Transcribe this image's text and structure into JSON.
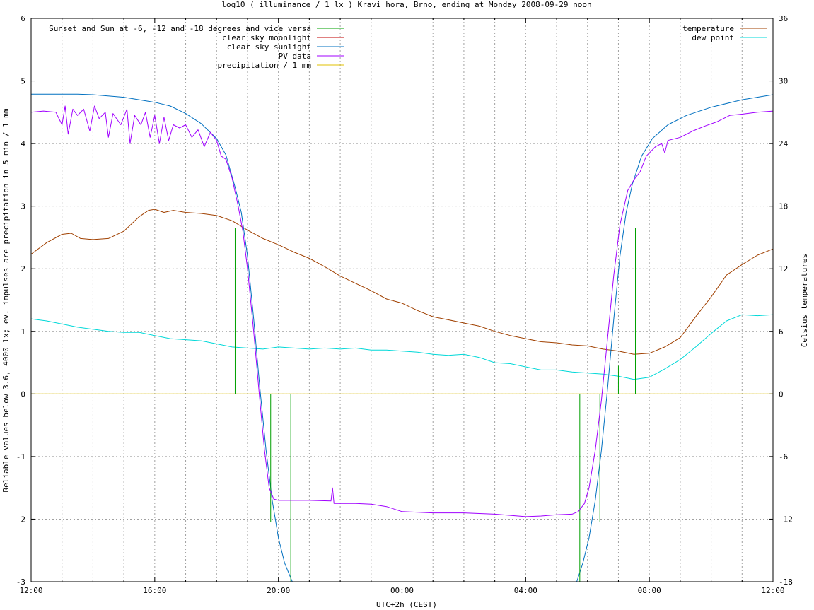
{
  "chart_data": {
    "type": "line",
    "title": "log10 ( illuminance / 1 lx ) Kravi hora, Brno, ending at Monday 2008-09-29 noon",
    "xlabel": "UTC+2h (CEST)",
    "ylabel": "Reliable values below 3.6, 4000 lx; ev. impulses are precipitation in 5 min / 1 mm",
    "y2label": "Celsius temperatures",
    "xlim": [
      0,
      24
    ],
    "ylim": [
      -3,
      6
    ],
    "y2lim": [
      -18,
      36
    ],
    "grid": true,
    "x_ticks": [
      {
        "v": 0,
        "label": "12:00"
      },
      {
        "v": 4,
        "label": "16:00"
      },
      {
        "v": 8,
        "label": "20:00"
      },
      {
        "v": 12,
        "label": "00:00"
      },
      {
        "v": 16,
        "label": "04:00"
      },
      {
        "v": 20,
        "label": "08:00"
      },
      {
        "v": 24,
        "label": "12:00"
      }
    ],
    "y_ticks": [
      {
        "v": -3,
        "label": "-3"
      },
      {
        "v": -2,
        "label": "-2"
      },
      {
        "v": -1,
        "label": "-1"
      },
      {
        "v": 0,
        "label": "0"
      },
      {
        "v": 1,
        "label": "1"
      },
      {
        "v": 2,
        "label": "2"
      },
      {
        "v": 3,
        "label": "3"
      },
      {
        "v": 4,
        "label": "4"
      },
      {
        "v": 5,
        "label": "5"
      },
      {
        "v": 6,
        "label": "6"
      }
    ],
    "y2_ticks": [
      {
        "v": -18,
        "label": "-18"
      },
      {
        "v": -12,
        "label": "-12"
      },
      {
        "v": -6,
        "label": "-6"
      },
      {
        "v": 0,
        "label": "0"
      },
      {
        "v": 6,
        "label": "6"
      },
      {
        "v": 12,
        "label": "12"
      },
      {
        "v": 18,
        "label": "18"
      },
      {
        "v": 24,
        "label": "24"
      },
      {
        "v": 30,
        "label": "30"
      },
      {
        "v": 36,
        "label": "36"
      }
    ],
    "series": [
      {
        "name": "Sunset and Sun at -6, -12 and -18 degrees and vice versa",
        "kind": "impulses",
        "color": "#00a000",
        "axis": "left",
        "points": [
          [
            6.6,
            2.65
          ],
          [
            7.15,
            0.45
          ],
          [
            7.75,
            -2.05
          ],
          [
            8.4,
            -3.0
          ],
          [
            17.75,
            -3.0
          ],
          [
            18.4,
            -2.05
          ],
          [
            19.0,
            0.45
          ],
          [
            19.55,
            2.65
          ]
        ]
      },
      {
        "name": "clear sky moonlight",
        "kind": "line",
        "color": "#c00000",
        "axis": "left",
        "points": []
      },
      {
        "name": "clear sky sunlight",
        "kind": "line",
        "color": "#0070c0",
        "axis": "left",
        "points": [
          [
            0,
            4.79
          ],
          [
            1.5,
            4.79
          ],
          [
            2,
            4.78
          ],
          [
            3,
            4.74
          ],
          [
            4,
            4.66
          ],
          [
            4.5,
            4.6
          ],
          [
            5,
            4.48
          ],
          [
            5.5,
            4.32
          ],
          [
            6,
            4.08
          ],
          [
            6.3,
            3.82
          ],
          [
            6.6,
            3.3
          ],
          [
            6.8,
            2.9
          ],
          [
            7.0,
            2.2
          ],
          [
            7.2,
            1.2
          ],
          [
            7.4,
            0.1
          ],
          [
            7.6,
            -0.9
          ],
          [
            7.8,
            -1.7
          ],
          [
            8.0,
            -2.3
          ],
          [
            8.2,
            -2.7
          ],
          [
            8.45,
            -3.0
          ],
          [
            17.65,
            -3.0
          ],
          [
            17.85,
            -2.7
          ],
          [
            18.05,
            -2.3
          ],
          [
            18.25,
            -1.7
          ],
          [
            18.45,
            -0.9
          ],
          [
            18.65,
            0.1
          ],
          [
            18.85,
            1.2
          ],
          [
            19.05,
            2.2
          ],
          [
            19.25,
            2.9
          ],
          [
            19.45,
            3.35
          ],
          [
            19.75,
            3.8
          ],
          [
            20.1,
            4.08
          ],
          [
            20.6,
            4.3
          ],
          [
            21.2,
            4.45
          ],
          [
            22,
            4.58
          ],
          [
            23,
            4.7
          ],
          [
            24,
            4.78
          ]
        ]
      },
      {
        "name": "PV data",
        "kind": "line",
        "color": "#a000ff",
        "axis": "left",
        "points": [
          [
            0,
            4.5
          ],
          [
            0.4,
            4.52
          ],
          [
            0.8,
            4.5
          ],
          [
            1.0,
            4.3
          ],
          [
            1.1,
            4.6
          ],
          [
            1.2,
            4.15
          ],
          [
            1.35,
            4.55
          ],
          [
            1.5,
            4.45
          ],
          [
            1.7,
            4.55
          ],
          [
            1.9,
            4.2
          ],
          [
            2.05,
            4.6
          ],
          [
            2.2,
            4.4
          ],
          [
            2.4,
            4.5
          ],
          [
            2.5,
            4.1
          ],
          [
            2.65,
            4.48
          ],
          [
            2.9,
            4.3
          ],
          [
            3.1,
            4.55
          ],
          [
            3.2,
            4.0
          ],
          [
            3.35,
            4.45
          ],
          [
            3.55,
            4.3
          ],
          [
            3.7,
            4.5
          ],
          [
            3.85,
            4.1
          ],
          [
            4.0,
            4.45
          ],
          [
            4.15,
            4.0
          ],
          [
            4.3,
            4.42
          ],
          [
            4.45,
            4.05
          ],
          [
            4.6,
            4.3
          ],
          [
            4.8,
            4.25
          ],
          [
            5.0,
            4.3
          ],
          [
            5.2,
            4.1
          ],
          [
            5.4,
            4.22
          ],
          [
            5.6,
            3.95
          ],
          [
            5.8,
            4.18
          ],
          [
            6.0,
            4.05
          ],
          [
            6.15,
            3.8
          ],
          [
            6.3,
            3.75
          ],
          [
            6.5,
            3.45
          ],
          [
            6.7,
            3.0
          ],
          [
            6.85,
            2.6
          ],
          [
            7.0,
            2.0
          ],
          [
            7.2,
            1.0
          ],
          [
            7.4,
            -0.1
          ],
          [
            7.55,
            -0.9
          ],
          [
            7.7,
            -1.5
          ],
          [
            7.85,
            -1.68
          ],
          [
            8.0,
            -1.7
          ],
          [
            9.0,
            -1.7
          ],
          [
            9.7,
            -1.71
          ],
          [
            9.75,
            -1.5
          ],
          [
            9.8,
            -1.75
          ],
          [
            10.5,
            -1.75
          ],
          [
            11.0,
            -1.76
          ],
          [
            11.5,
            -1.8
          ],
          [
            12.0,
            -1.88
          ],
          [
            13.0,
            -1.9
          ],
          [
            14.0,
            -1.9
          ],
          [
            15.0,
            -1.92
          ],
          [
            16.0,
            -1.96
          ],
          [
            16.5,
            -1.95
          ],
          [
            17.0,
            -1.93
          ],
          [
            17.5,
            -1.92
          ],
          [
            17.7,
            -1.88
          ],
          [
            17.9,
            -1.75
          ],
          [
            18.05,
            -1.5
          ],
          [
            18.25,
            -0.9
          ],
          [
            18.45,
            -0.1
          ],
          [
            18.65,
            0.9
          ],
          [
            18.85,
            1.9
          ],
          [
            19.05,
            2.7
          ],
          [
            19.3,
            3.25
          ],
          [
            19.5,
            3.42
          ],
          [
            19.7,
            3.55
          ],
          [
            19.9,
            3.8
          ],
          [
            20.2,
            3.95
          ],
          [
            20.4,
            4.0
          ],
          [
            20.5,
            3.85
          ],
          [
            20.6,
            4.05
          ],
          [
            21.0,
            4.1
          ],
          [
            21.4,
            4.2
          ],
          [
            21.8,
            4.28
          ],
          [
            22.2,
            4.35
          ],
          [
            22.6,
            4.45
          ],
          [
            23.0,
            4.47
          ],
          [
            23.5,
            4.5
          ],
          [
            24.0,
            4.52
          ]
        ]
      },
      {
        "name": "precipitation / 1 mm",
        "kind": "line",
        "color": "#e0c000",
        "axis": "left",
        "points": [
          [
            0,
            0
          ],
          [
            24,
            0
          ]
        ]
      },
      {
        "name": "temperature",
        "kind": "line",
        "color": "#a04000",
        "axis": "right",
        "points": [
          [
            0,
            13.4
          ],
          [
            0.5,
            14.5
          ],
          [
            1.0,
            15.3
          ],
          [
            1.3,
            15.4
          ],
          [
            1.6,
            14.9
          ],
          [
            2.0,
            14.8
          ],
          [
            2.5,
            14.9
          ],
          [
            3.0,
            15.6
          ],
          [
            3.5,
            17.0
          ],
          [
            3.8,
            17.6
          ],
          [
            4.0,
            17.7
          ],
          [
            4.3,
            17.4
          ],
          [
            4.6,
            17.6
          ],
          [
            5.0,
            17.4
          ],
          [
            5.5,
            17.3
          ],
          [
            6.0,
            17.1
          ],
          [
            6.5,
            16.6
          ],
          [
            7.0,
            15.7
          ],
          [
            7.5,
            14.9
          ],
          [
            8.0,
            14.3
          ],
          [
            8.5,
            13.6
          ],
          [
            9.0,
            13.0
          ],
          [
            9.5,
            12.2
          ],
          [
            10.0,
            11.3
          ],
          [
            10.5,
            10.6
          ],
          [
            11.0,
            9.9
          ],
          [
            11.5,
            9.1
          ],
          [
            12.0,
            8.7
          ],
          [
            12.5,
            8.0
          ],
          [
            13.0,
            7.4
          ],
          [
            13.5,
            7.1
          ],
          [
            14.0,
            6.8
          ],
          [
            14.5,
            6.5
          ],
          [
            15.0,
            6.0
          ],
          [
            15.5,
            5.6
          ],
          [
            16.0,
            5.3
          ],
          [
            16.5,
            5.0
          ],
          [
            17.0,
            4.9
          ],
          [
            17.5,
            4.7
          ],
          [
            18.0,
            4.6
          ],
          [
            18.5,
            4.3
          ],
          [
            19.0,
            4.1
          ],
          [
            19.5,
            3.8
          ],
          [
            20.0,
            3.9
          ],
          [
            20.5,
            4.5
          ],
          [
            21.0,
            5.4
          ],
          [
            21.5,
            7.4
          ],
          [
            22.0,
            9.3
          ],
          [
            22.5,
            11.4
          ],
          [
            23.0,
            12.4
          ],
          [
            23.5,
            13.3
          ],
          [
            24.0,
            13.9
          ]
        ]
      },
      {
        "name": "dew point",
        "kind": "line",
        "color": "#00d8d8",
        "axis": "right",
        "points": [
          [
            0,
            7.2
          ],
          [
            0.5,
            7.0
          ],
          [
            1.0,
            6.7
          ],
          [
            1.5,
            6.4
          ],
          [
            2.0,
            6.2
          ],
          [
            2.5,
            6.0
          ],
          [
            3.0,
            5.9
          ],
          [
            3.5,
            5.9
          ],
          [
            4.0,
            5.6
          ],
          [
            4.5,
            5.3
          ],
          [
            5.0,
            5.2
          ],
          [
            5.5,
            5.1
          ],
          [
            6.0,
            4.8
          ],
          [
            6.5,
            4.5
          ],
          [
            7.0,
            4.4
          ],
          [
            7.5,
            4.3
          ],
          [
            8.0,
            4.5
          ],
          [
            8.5,
            4.4
          ],
          [
            9.0,
            4.3
          ],
          [
            9.5,
            4.4
          ],
          [
            10.0,
            4.3
          ],
          [
            10.5,
            4.4
          ],
          [
            11.0,
            4.2
          ],
          [
            11.5,
            4.2
          ],
          [
            12.0,
            4.1
          ],
          [
            12.5,
            4.0
          ],
          [
            13.0,
            3.8
          ],
          [
            13.5,
            3.7
          ],
          [
            14.0,
            3.8
          ],
          [
            14.5,
            3.5
          ],
          [
            15.0,
            3.0
          ],
          [
            15.5,
            2.9
          ],
          [
            16.0,
            2.6
          ],
          [
            16.5,
            2.3
          ],
          [
            17.0,
            2.3
          ],
          [
            17.5,
            2.1
          ],
          [
            18.0,
            2.0
          ],
          [
            18.5,
            1.9
          ],
          [
            19.0,
            1.7
          ],
          [
            19.5,
            1.4
          ],
          [
            20.0,
            1.6
          ],
          [
            20.5,
            2.4
          ],
          [
            21.0,
            3.3
          ],
          [
            21.5,
            4.5
          ],
          [
            22.0,
            5.8
          ],
          [
            22.5,
            7.0
          ],
          [
            23.0,
            7.6
          ],
          [
            23.5,
            7.5
          ],
          [
            24.0,
            7.6
          ]
        ]
      }
    ],
    "legend_left": [
      {
        "label": "Sunset and Sun at -6, -12 and -18 degrees and vice versa",
        "color": "#00a000"
      },
      {
        "label": "clear sky moonlight",
        "color": "#c00000"
      },
      {
        "label": "clear sky sunlight",
        "color": "#0070c0"
      },
      {
        "label": "PV data",
        "color": "#a000ff"
      },
      {
        "label": "precipitation / 1 mm",
        "color": "#e0c000"
      }
    ],
    "legend_right": [
      {
        "label": "temperature",
        "color": "#a04000"
      },
      {
        "label": "dew point",
        "color": "#00d8d8"
      }
    ]
  }
}
